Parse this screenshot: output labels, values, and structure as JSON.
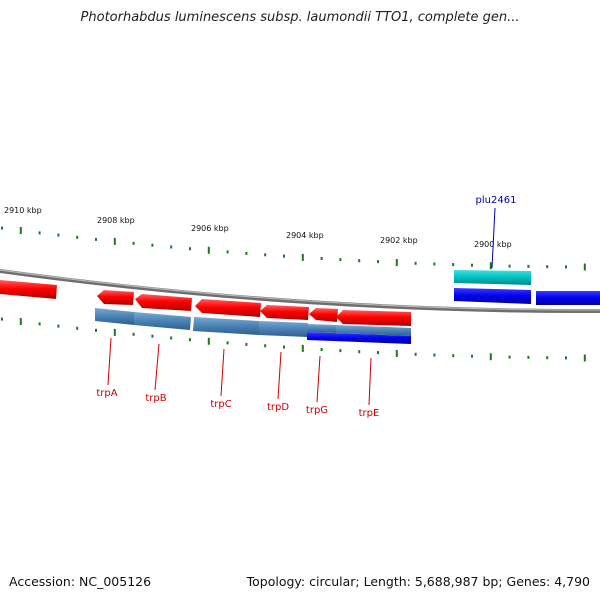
{
  "title": "Photorhabdus luminescens subsp. laumondii TTO1, complete gen...",
  "footer": {
    "accession": "Accession: NC_005126",
    "topology": "Topology: circular; Length: 5,688,987 bp; Genes: 4,790"
  },
  "scale_labels": [
    "2910 kbp",
    "2908 kbp",
    "2906 kbp",
    "2904 kbp",
    "2902 kbp",
    "2900 kbp"
  ],
  "gene_labels": [
    "plu2461",
    "trpA",
    "trpB",
    "trpC",
    "trpD",
    "trpG",
    "trpE"
  ],
  "colors": {
    "forward_strand": "#ff0000",
    "reverse_strand": "#0000ee",
    "orf_steel": "#4a82b4",
    "orf_cyan": "#00c0c0",
    "tick_green": "#1a7a1a",
    "backbone": "#888888",
    "label_red": "#cc0000",
    "label_blue": "#0000aa"
  }
}
